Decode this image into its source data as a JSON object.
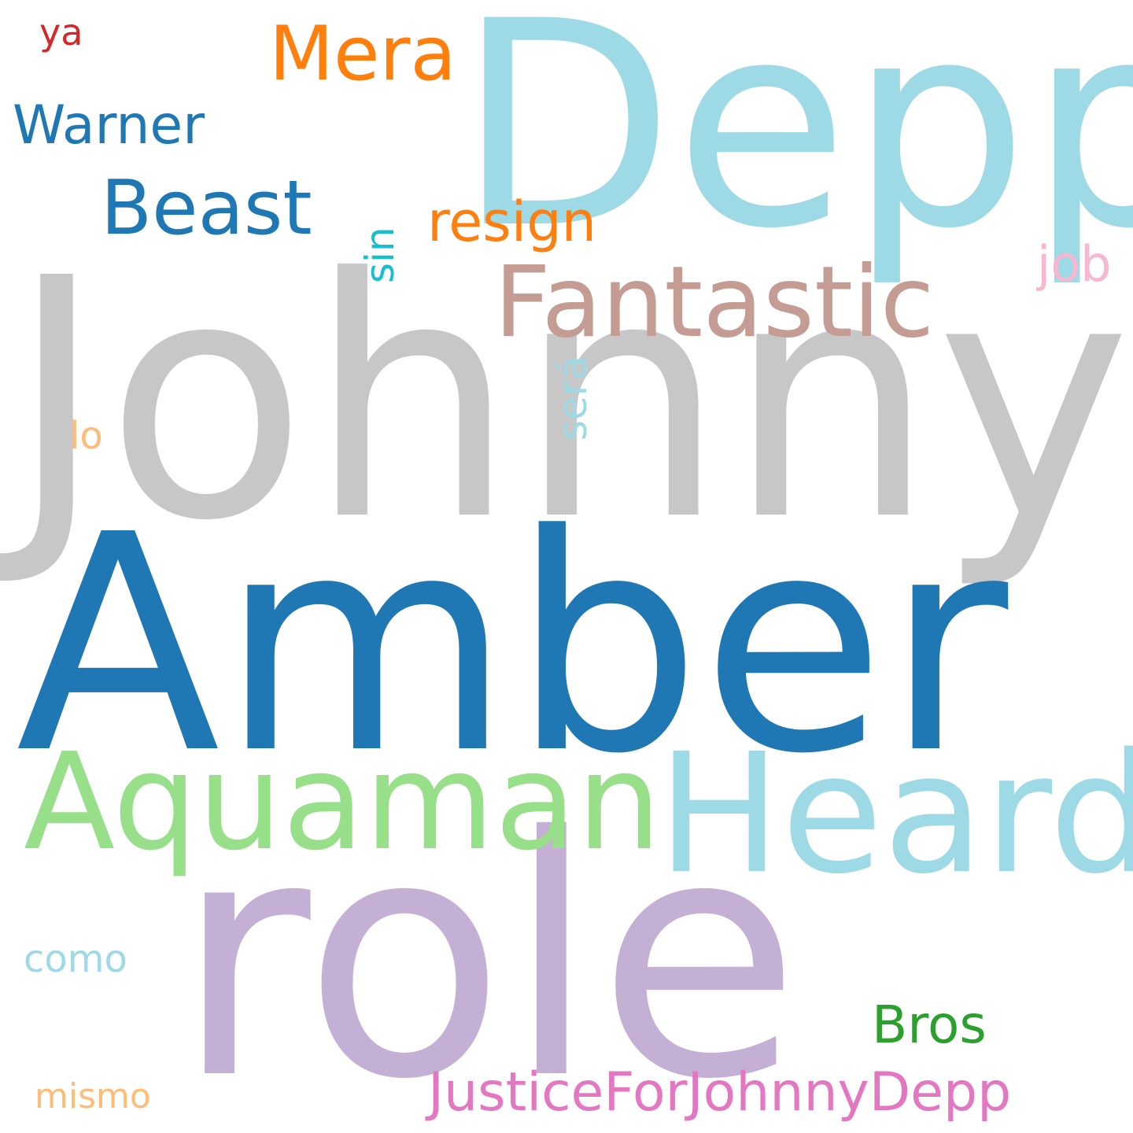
{
  "words": [
    {
      "text": "Johnny",
      "color": "#c7c7c7"
    },
    {
      "text": "Amber",
      "color": "#1f77b4"
    },
    {
      "text": "role",
      "color": "#c5b0d5"
    },
    {
      "text": "Depp",
      "color": "#9edae5"
    },
    {
      "text": "Heard",
      "color": "#9edae5"
    },
    {
      "text": "Aquaman",
      "color": "#98df8a"
    },
    {
      "text": "Fantastic",
      "color": "#c49c94"
    },
    {
      "text": "Mera",
      "color": "#ff7f0e"
    },
    {
      "text": "Beast",
      "color": "#1f77b4"
    },
    {
      "text": "Warner",
      "color": "#1f77b4"
    },
    {
      "text": "resign",
      "color": "#ff7f0e"
    },
    {
      "text": "job",
      "color": "#f7b6d2"
    },
    {
      "text": "sin",
      "color": "#17becf"
    },
    {
      "text": "será",
      "color": "#9edae5"
    },
    {
      "text": "lo",
      "color": "#ffbb78"
    },
    {
      "text": "ya",
      "color": "#d62728"
    },
    {
      "text": "como",
      "color": "#9edae5"
    },
    {
      "text": "Bros",
      "color": "#2ca02c"
    },
    {
      "text": "JusticeForJohnnyDepp",
      "color": "#e377c2"
    },
    {
      "text": "mismo",
      "color": "#ffbb78"
    }
  ]
}
